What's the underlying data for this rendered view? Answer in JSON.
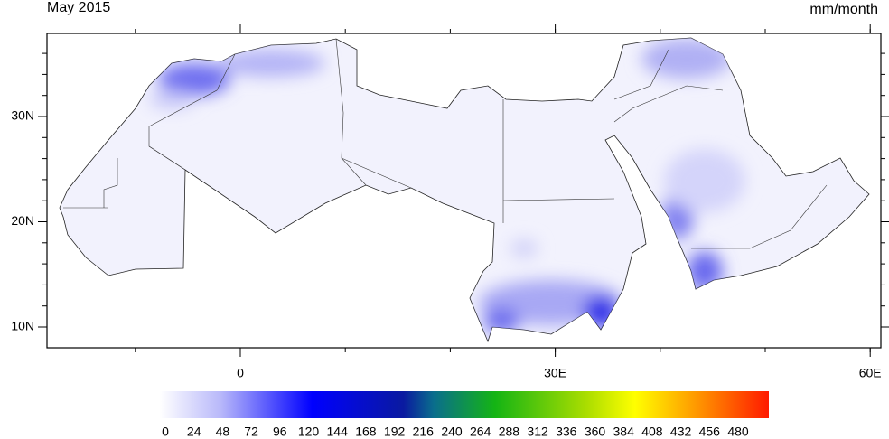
{
  "title": "May 2015",
  "units": "mm/month",
  "lat_ticks": [
    {
      "value": 30,
      "label": "30N"
    },
    {
      "value": 20,
      "label": "20N"
    },
    {
      "value": 10,
      "label": "10N"
    }
  ],
  "lon_ticks": [
    {
      "value": 0,
      "label": "0"
    },
    {
      "value": 30,
      "label": "30E"
    },
    {
      "value": 60,
      "label": "60E"
    }
  ],
  "colorbar": {
    "labels": [
      "0",
      "24",
      "48",
      "72",
      "96",
      "120",
      "144",
      "168",
      "192",
      "216",
      "240",
      "264",
      "288",
      "312",
      "336",
      "360",
      "384",
      "408",
      "432",
      "456",
      "480"
    ]
  }
}
